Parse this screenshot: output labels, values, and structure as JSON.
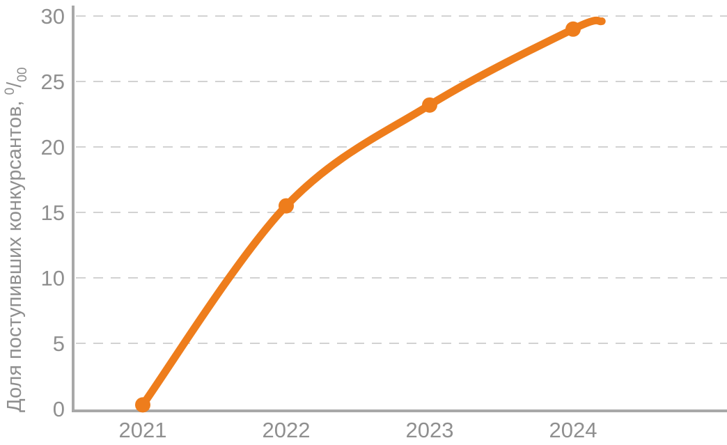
{
  "chart_data": {
    "type": "line",
    "title": "",
    "xlabel": "",
    "ylabel": {
      "text": "Доля поступивших конкурсантов, ",
      "unit_sup": "0",
      "unit_slash": "/",
      "unit_sub": "00"
    },
    "x": [
      2021,
      2022,
      2023,
      2024
    ],
    "series": [
      {
        "name": "Доля поступивших конкурсантов",
        "values": [
          0.3,
          15.5,
          23.2,
          29.0
        ]
      }
    ],
    "line_end": {
      "x": 2024.2,
      "y": 29.6
    },
    "xticklabels": [
      "2021",
      "2022",
      "2023",
      "2024"
    ],
    "yticks": [
      0,
      5,
      10,
      15,
      20,
      25,
      30
    ],
    "ylim": [
      0,
      30
    ],
    "grid": "horizontal-dashed",
    "legend": "none",
    "smooth": true,
    "colors": {
      "line": "#ee7d1c",
      "marker": "#ee7d1c",
      "axis": "#a8a8a8",
      "grid": "#d2d2d2",
      "tick_label": "#8f8f8f",
      "axis_label": "#8f8f8f",
      "background": "#ffffff"
    }
  }
}
